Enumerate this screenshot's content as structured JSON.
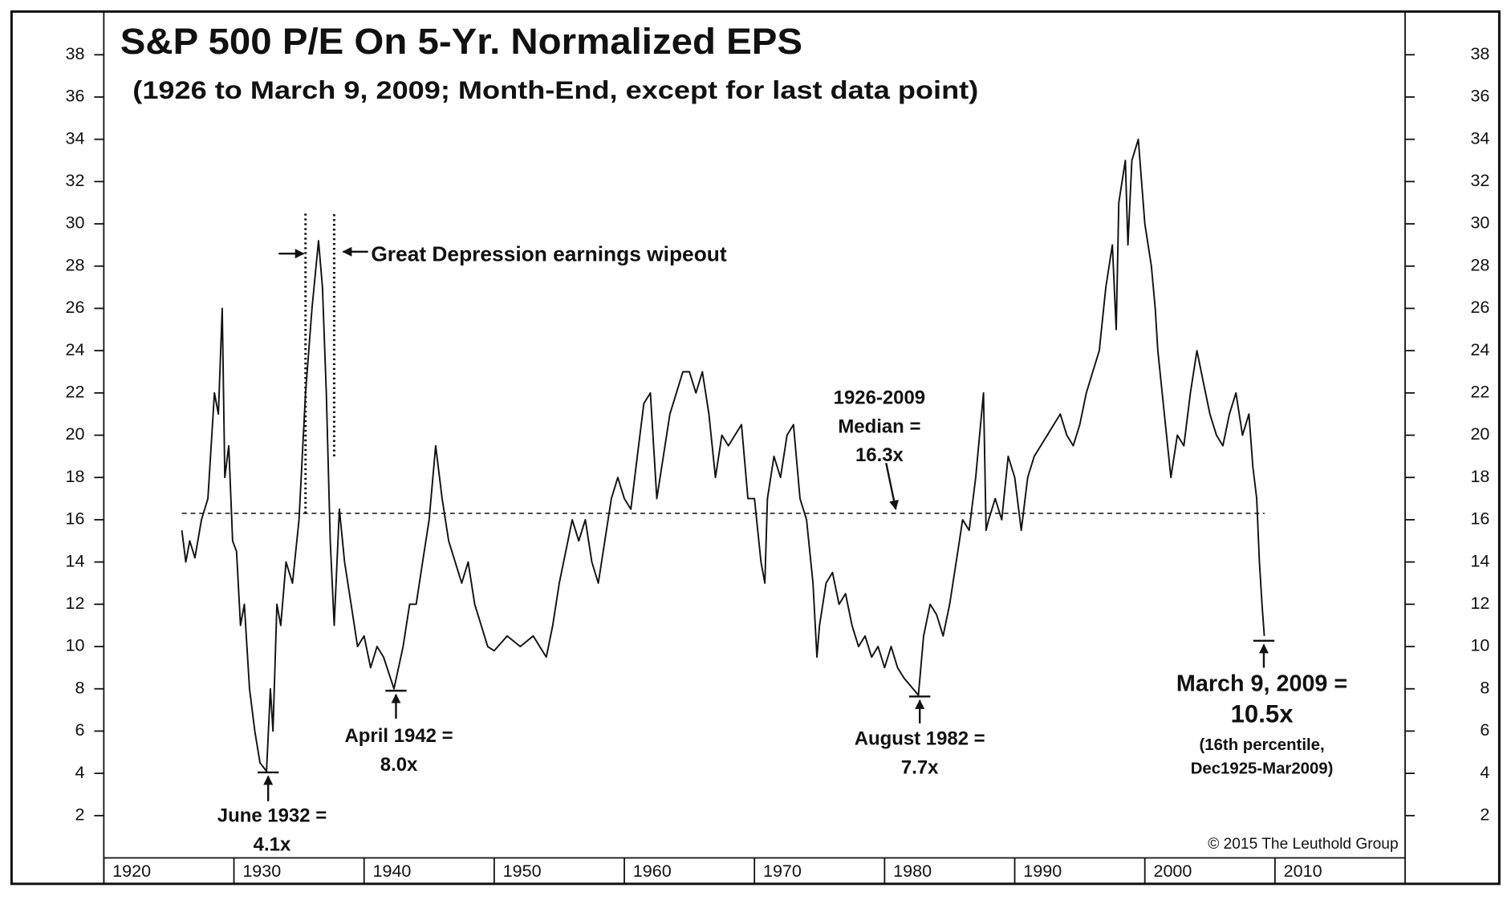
{
  "chart_data": {
    "type": "line",
    "title": "S&P 500 P/E On 5-Yr. Normalized EPS",
    "subtitle": "(1926 to March 9, 2009; Month-End, except for last data point)",
    "source": "© 2015 The Leuthold Group",
    "xlim": [
      1920,
      2020
    ],
    "xticks": [
      1920,
      1930,
      1940,
      1950,
      1960,
      1970,
      1980,
      1990,
      2000,
      2010
    ],
    "ylim": [
      0,
      40
    ],
    "yticks": [
      2,
      4,
      6,
      8,
      10,
      12,
      14,
      16,
      18,
      20,
      22,
      24,
      26,
      28,
      30,
      32,
      34,
      36,
      38
    ],
    "reference_line": {
      "y": 16.3,
      "x": [
        1926,
        2009.2
      ]
    },
    "vlines": [
      {
        "x": 1935.5,
        "y": [
          16.3,
          30.5
        ]
      },
      {
        "x": 1937.7,
        "y": [
          19,
          30.5
        ]
      }
    ],
    "series": [
      {
        "name": "S&P 500 P/E",
        "color": "#111111",
        "x": [
          1926.0,
          1926.3,
          1926.6,
          1927.0,
          1927.5,
          1928.0,
          1928.5,
          1928.8,
          1929.1,
          1929.3,
          1929.6,
          1929.9,
          1930.2,
          1930.5,
          1930.8,
          1931.2,
          1931.6,
          1932.0,
          1932.5,
          1932.8,
          1933.0,
          1933.3,
          1933.6,
          1934.0,
          1934.5,
          1935.0,
          1935.5,
          1936.0,
          1936.5,
          1936.8,
          1937.1,
          1937.4,
          1937.7,
          1938.1,
          1938.5,
          1939.0,
          1939.5,
          1940.0,
          1940.5,
          1941.0,
          1941.5,
          1942.3,
          1943.0,
          1943.5,
          1944.0,
          1944.5,
          1945.0,
          1945.5,
          1946.0,
          1946.5,
          1947.0,
          1947.5,
          1948.0,
          1948.5,
          1949.0,
          1949.5,
          1950.0,
          1951.0,
          1952.0,
          1953.0,
          1954.0,
          1954.5,
          1955.0,
          1956.0,
          1956.5,
          1957.0,
          1957.5,
          1958.0,
          1958.5,
          1959.0,
          1959.5,
          1960.0,
          1960.5,
          1961.0,
          1961.5,
          1962.0,
          1962.5,
          1963.0,
          1963.5,
          1964.0,
          1964.5,
          1965.0,
          1965.5,
          1966.0,
          1966.5,
          1967.0,
          1967.5,
          1968.0,
          1968.5,
          1969.0,
          1969.5,
          1970.0,
          1970.5,
          1970.8,
          1971.0,
          1971.5,
          1972.0,
          1972.5,
          1973.0,
          1973.5,
          1974.0,
          1974.5,
          1974.8,
          1975.0,
          1975.5,
          1976.0,
          1976.5,
          1977.0,
          1977.5,
          1978.0,
          1978.5,
          1979.0,
          1979.5,
          1980.0,
          1980.5,
          1981.0,
          1981.5,
          1982.6,
          1983.0,
          1983.5,
          1984.0,
          1984.5,
          1985.0,
          1985.5,
          1986.0,
          1986.5,
          1987.0,
          1987.6,
          1987.8,
          1988.0,
          1988.5,
          1989.0,
          1989.5,
          1990.0,
          1990.5,
          1991.0,
          1991.5,
          1992.0,
          1992.5,
          1993.0,
          1993.5,
          1994.0,
          1994.5,
          1995.0,
          1995.5,
          1996.0,
          1996.5,
          1997.0,
          1997.5,
          1997.8,
          1998.0,
          1998.5,
          1998.7,
          1999.0,
          1999.5,
          2000.0,
          2000.5,
          2000.8,
          2001.0,
          2001.5,
          2002.0,
          2002.5,
          2003.0,
          2003.5,
          2004.0,
          2004.5,
          2005.0,
          2005.5,
          2006.0,
          2006.5,
          2007.0,
          2007.5,
          2008.0,
          2008.3,
          2008.6,
          2008.8,
          2009.0,
          2009.18
        ],
        "values": [
          15.5,
          14,
          15,
          14.2,
          16,
          17,
          22,
          21,
          26,
          18,
          19.5,
          15,
          14.5,
          11,
          12,
          8,
          6,
          4.5,
          4.1,
          8,
          6,
          12,
          11,
          14,
          13,
          16,
          22,
          26,
          29.2,
          27,
          22,
          15,
          11,
          16.5,
          14,
          12,
          10,
          10.5,
          9,
          10,
          9.5,
          8.0,
          10,
          12,
          12,
          14,
          16,
          19.5,
          17,
          15,
          14,
          13,
          14,
          12,
          11,
          10,
          9.8,
          10.5,
          10,
          10.5,
          9.5,
          11,
          13,
          16,
          15,
          16,
          14,
          13,
          15,
          17,
          18,
          17,
          16.5,
          19,
          21.5,
          22,
          17,
          19,
          21,
          22,
          23,
          23,
          22,
          23,
          21,
          18,
          20,
          19.5,
          20,
          20.5,
          17,
          17,
          14,
          13,
          17,
          19,
          18,
          20,
          20.5,
          17,
          16,
          13,
          9.5,
          11,
          13,
          13.5,
          12,
          12.5,
          11,
          10,
          10.5,
          9.5,
          10,
          9,
          10,
          9,
          8.5,
          7.7,
          10.5,
          12,
          11.5,
          10.5,
          12,
          14,
          16,
          15.5,
          18,
          22,
          15.5,
          16,
          17,
          16,
          19,
          18,
          15.5,
          18,
          19,
          19.5,
          20,
          20.5,
          21,
          20,
          19.5,
          20.5,
          22,
          23,
          24,
          27,
          29,
          25,
          31,
          33,
          29,
          33,
          34,
          30,
          28,
          26,
          24,
          21,
          18,
          20,
          19.5,
          22,
          24,
          22.5,
          21,
          20,
          19.5,
          21,
          22,
          20,
          21,
          18.5,
          17,
          14,
          12,
          10.5
        ]
      }
    ],
    "annotations": [
      {
        "lines": [
          "Great Depression earnings wipeout"
        ]
      },
      {
        "lines": [
          "1926-2009",
          "Median =",
          "16.3x"
        ]
      },
      {
        "lines": [
          "June 1932 =",
          "4.1x"
        ]
      },
      {
        "lines": [
          "April 1942 =",
          "8.0x"
        ]
      },
      {
        "lines": [
          "August 1982 =",
          "7.7x"
        ]
      },
      {
        "lines": [
          "March 9, 2009 =",
          "10.5x",
          "(16th percentile,",
          "Dec1925-Mar2009)"
        ]
      }
    ]
  }
}
